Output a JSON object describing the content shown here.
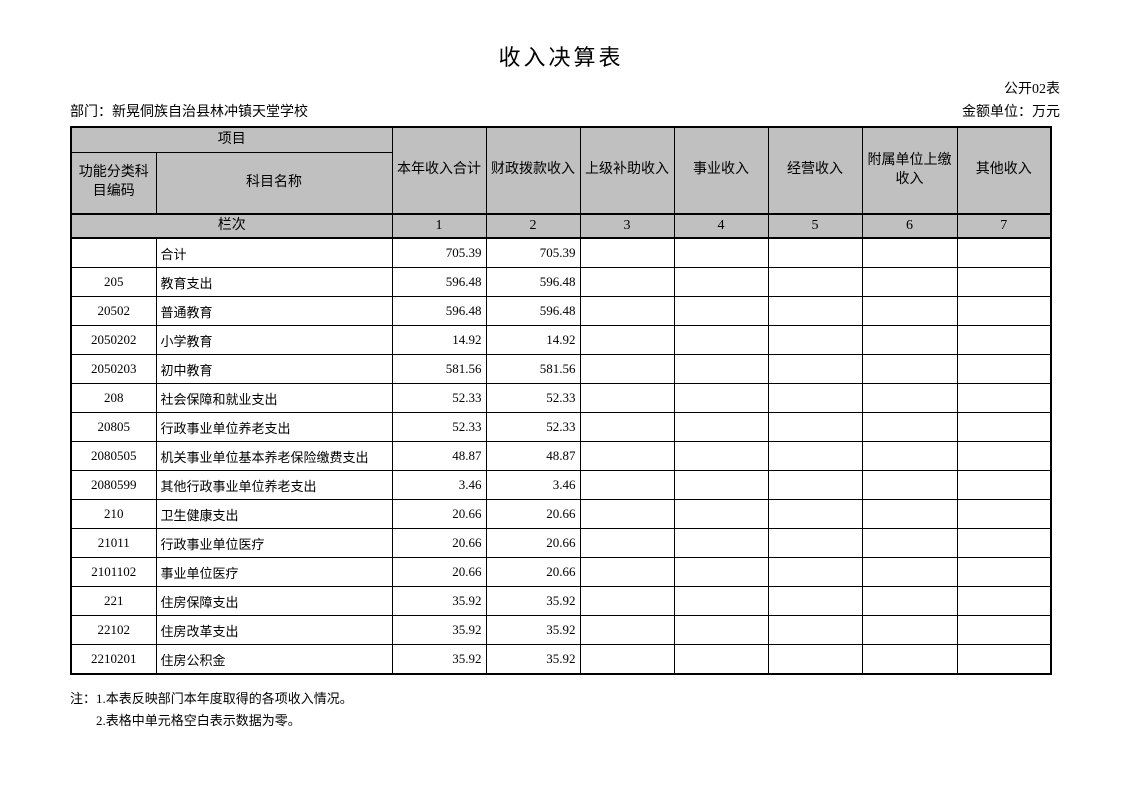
{
  "page": {
    "title": "收入决算表",
    "table_code": "公开02表",
    "department_label": "部门：新晃侗族自治县林冲镇天堂学校",
    "unit_label": "金额单位：万元"
  },
  "colors": {
    "header_bg": "#c0c0c0",
    "border": "#000000",
    "page_bg": "#ffffff"
  },
  "table": {
    "header": {
      "project_group": "项目",
      "code_col": "功能分类科目编码",
      "name_col": "科目名称",
      "income_cols": [
        "本年收入合计",
        "财政拨款收入",
        "上级补助收入",
        "事业收入",
        "经营收入",
        "附属单位上缴收入",
        "其他收入"
      ],
      "row_index_label": "栏次",
      "col_indexes": [
        "1",
        "2",
        "3",
        "4",
        "5",
        "6",
        "7"
      ]
    },
    "rows": [
      {
        "code": "",
        "name": "合计",
        "values": [
          "705.39",
          "705.39",
          "",
          "",
          "",
          "",
          ""
        ]
      },
      {
        "code": "205",
        "name": "教育支出",
        "values": [
          "596.48",
          "596.48",
          "",
          "",
          "",
          "",
          ""
        ]
      },
      {
        "code": "20502",
        "name": "普通教育",
        "values": [
          "596.48",
          "596.48",
          "",
          "",
          "",
          "",
          ""
        ]
      },
      {
        "code": "2050202",
        "name": "小学教育",
        "values": [
          "14.92",
          "14.92",
          "",
          "",
          "",
          "",
          ""
        ]
      },
      {
        "code": "2050203",
        "name": "初中教育",
        "values": [
          "581.56",
          "581.56",
          "",
          "",
          "",
          "",
          ""
        ]
      },
      {
        "code": "208",
        "name": "社会保障和就业支出",
        "values": [
          "52.33",
          "52.33",
          "",
          "",
          "",
          "",
          ""
        ]
      },
      {
        "code": "20805",
        "name": "行政事业单位养老支出",
        "values": [
          "52.33",
          "52.33",
          "",
          "",
          "",
          "",
          ""
        ]
      },
      {
        "code": "2080505",
        "name": "机关事业单位基本养老保险缴费支出",
        "values": [
          "48.87",
          "48.87",
          "",
          "",
          "",
          "",
          ""
        ]
      },
      {
        "code": "2080599",
        "name": "其他行政事业单位养老支出",
        "values": [
          "3.46",
          "3.46",
          "",
          "",
          "",
          "",
          ""
        ]
      },
      {
        "code": "210",
        "name": "卫生健康支出",
        "values": [
          "20.66",
          "20.66",
          "",
          "",
          "",
          "",
          ""
        ]
      },
      {
        "code": "21011",
        "name": "行政事业单位医疗",
        "values": [
          "20.66",
          "20.66",
          "",
          "",
          "",
          "",
          ""
        ]
      },
      {
        "code": "2101102",
        "name": "事业单位医疗",
        "values": [
          "20.66",
          "20.66",
          "",
          "",
          "",
          "",
          ""
        ]
      },
      {
        "code": "221",
        "name": "住房保障支出",
        "values": [
          "35.92",
          "35.92",
          "",
          "",
          "",
          "",
          ""
        ]
      },
      {
        "code": "22102",
        "name": "住房改革支出",
        "values": [
          "35.92",
          "35.92",
          "",
          "",
          "",
          "",
          ""
        ]
      },
      {
        "code": "2210201",
        "name": "住房公积金",
        "values": [
          "35.92",
          "35.92",
          "",
          "",
          "",
          "",
          ""
        ]
      }
    ]
  },
  "notes": {
    "line1": "注：1.本表反映部门本年度取得的各项收入情况。",
    "line2": "2.表格中单元格空白表示数据为零。"
  }
}
